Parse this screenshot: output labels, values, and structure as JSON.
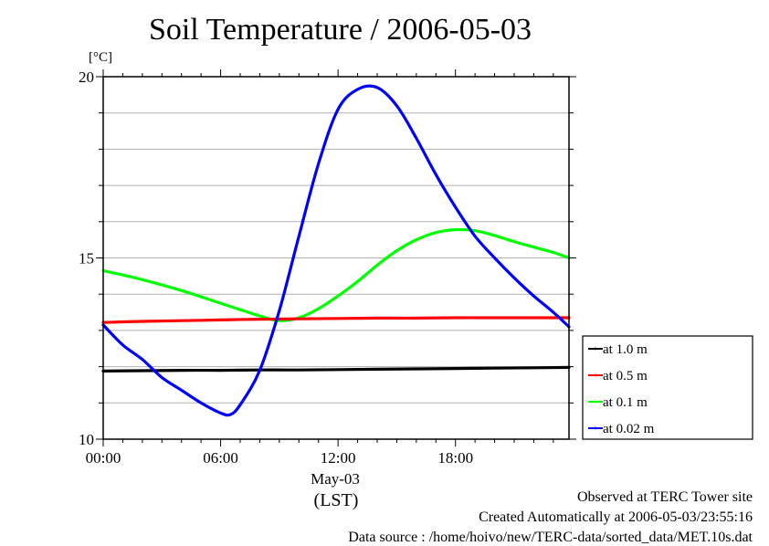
{
  "chart_data": {
    "type": "line",
    "title": "Soil Temperature / 2006-05-03",
    "ylabel": "[°C]",
    "xlabel_date": "May-03",
    "xlabel_unit": "(LST)",
    "xlim": [
      0,
      23.8
    ],
    "ylim": [
      10,
      20
    ],
    "yticks": [
      10,
      15,
      20
    ],
    "xticks": [
      {
        "value": 0,
        "label": "00:00"
      },
      {
        "value": 6,
        "label": "06:00"
      },
      {
        "value": 12,
        "label": "12:00"
      },
      {
        "value": 18,
        "label": "18:00"
      }
    ],
    "grid": true,
    "legend_position": "right",
    "series": [
      {
        "name": "at 1.0 m",
        "color": "#000000",
        "x": [
          0,
          2,
          4,
          6,
          8,
          10,
          12,
          14,
          16,
          18,
          20,
          22,
          23.8
        ],
        "y": [
          11.88,
          11.89,
          11.9,
          11.9,
          11.91,
          11.91,
          11.92,
          11.93,
          11.94,
          11.95,
          11.96,
          11.97,
          11.98
        ]
      },
      {
        "name": "at 0.5 m",
        "color": "#ff0000",
        "x": [
          0,
          2,
          4,
          6,
          8,
          10,
          12,
          14,
          16,
          18,
          20,
          22,
          23.8
        ],
        "y": [
          13.22,
          13.25,
          13.27,
          13.29,
          13.31,
          13.32,
          13.33,
          13.34,
          13.34,
          13.35,
          13.35,
          13.35,
          13.35
        ]
      },
      {
        "name": "at 0.1 m",
        "color": "#00ff00",
        "x": [
          0,
          2,
          4,
          6,
          8,
          9,
          10,
          11,
          12,
          13,
          14,
          15,
          16,
          17,
          18,
          19,
          20,
          21,
          22,
          23,
          23.8
        ],
        "y": [
          14.65,
          14.4,
          14.1,
          13.75,
          13.4,
          13.27,
          13.35,
          13.6,
          13.95,
          14.35,
          14.8,
          15.2,
          15.5,
          15.7,
          15.78,
          15.75,
          15.62,
          15.45,
          15.3,
          15.15,
          15.0
        ]
      },
      {
        "name": "at 0.02 m",
        "color": "#0000ff",
        "x": [
          0,
          1,
          2,
          3,
          4,
          5,
          6,
          6.5,
          7,
          8,
          9,
          10,
          11,
          12,
          13,
          14,
          15,
          16,
          17,
          18,
          19,
          20,
          21,
          22,
          23,
          23.8
        ],
        "y": [
          13.15,
          12.6,
          12.2,
          11.7,
          11.35,
          11.0,
          10.72,
          10.68,
          10.95,
          11.9,
          13.55,
          15.6,
          17.6,
          19.1,
          19.65,
          19.7,
          19.2,
          18.3,
          17.3,
          16.4,
          15.6,
          15.0,
          14.45,
          13.95,
          13.5,
          13.1
        ]
      }
    ]
  },
  "footer": {
    "line1": "Observed at TERC Tower site",
    "line2": "Created Automatically at 2006-05-03/23:55:16",
    "line3": "Data source : /home/hoivo/new/TERC-data/sorted_data/MET.10s.dat"
  }
}
